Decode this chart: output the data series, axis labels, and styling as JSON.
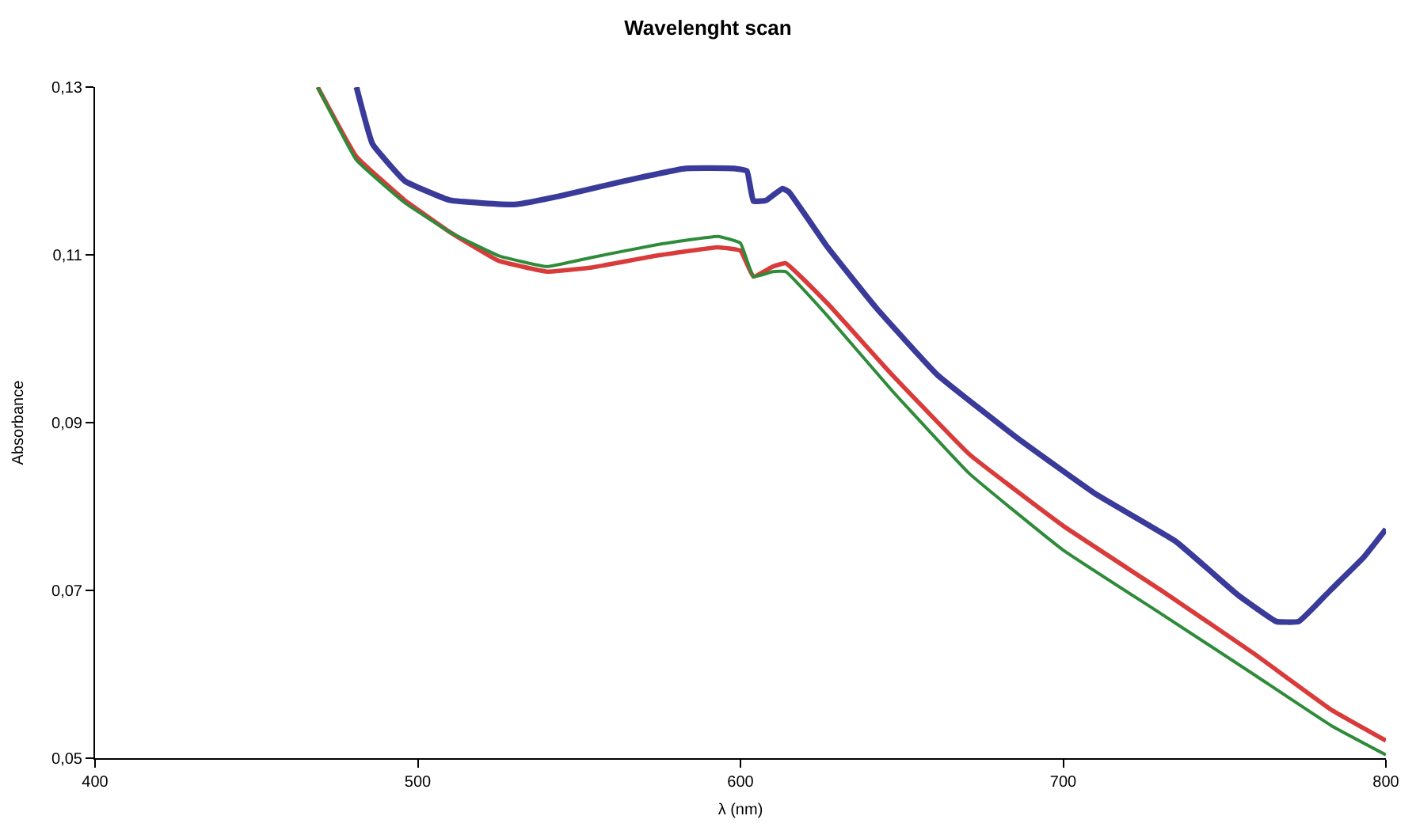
{
  "chart_data": {
    "type": "line",
    "title": "Wavelenght scan",
    "xlabel": "λ (nm)",
    "ylabel": "Absorbance",
    "xlim": [
      400,
      800
    ],
    "xticks": [
      400,
      500,
      600,
      700,
      800
    ],
    "ylim": [
      0.05,
      0.13
    ],
    "yticks": [
      {
        "value": 0.05,
        "label": "0,05"
      },
      {
        "value": 0.07,
        "label": "0,07"
      },
      {
        "value": 0.09,
        "label": "0,09"
      },
      {
        "value": 0.11,
        "label": "0,11"
      },
      {
        "value": 0.13,
        "label": "0,13"
      }
    ],
    "marker": "none",
    "line_style": "solid",
    "series": [
      {
        "color": "#3a3a9a",
        "x": [
          481,
          486,
          496,
          510,
          530,
          544,
          564,
          583,
          598,
          602,
          604,
          608,
          613,
          615,
          627,
          642,
          661,
          686,
          710,
          735,
          754,
          766,
          773,
          783,
          793,
          800
        ],
        "values": [
          0.13,
          0.1232,
          0.1188,
          0.1165,
          0.116,
          0.117,
          0.1188,
          0.1203,
          0.1203,
          0.12,
          0.1164,
          0.1165,
          0.1179,
          0.1175,
          0.1109,
          0.1037,
          0.0957,
          0.0881,
          0.0815,
          0.0758,
          0.0695,
          0.0663,
          0.0663,
          0.0701,
          0.0739,
          0.0773
        ]
      },
      {
        "color": "#d93a3a",
        "x": [
          469,
          481,
          496,
          510,
          525,
          540,
          554,
          574,
          593,
          600,
          604,
          610,
          614,
          627,
          647,
          671,
          700,
          730,
          759,
          783,
          800
        ],
        "values": [
          0.13,
          0.1217,
          0.1165,
          0.1127,
          0.1093,
          0.108,
          0.1085,
          0.1099,
          0.1109,
          0.1105,
          0.1074,
          0.1086,
          0.109,
          0.1042,
          0.0957,
          0.0862,
          0.0777,
          0.0701,
          0.0625,
          0.0558,
          0.0521
        ]
      },
      {
        "color": "#2e8b3a",
        "x": [
          469,
          481,
          496,
          510,
          525,
          540,
          554,
          574,
          593,
          600,
          604,
          610,
          614,
          627,
          647,
          671,
          700,
          730,
          759,
          783,
          800
        ],
        "values": [
          0.13,
          0.1213,
          0.1162,
          0.1127,
          0.1099,
          0.1086,
          0.1097,
          0.1112,
          0.1122,
          0.1114,
          0.1074,
          0.108,
          0.108,
          0.1027,
          0.0938,
          0.0839,
          0.0748,
          0.0673,
          0.06,
          0.0539,
          0.0504
        ]
      }
    ]
  }
}
